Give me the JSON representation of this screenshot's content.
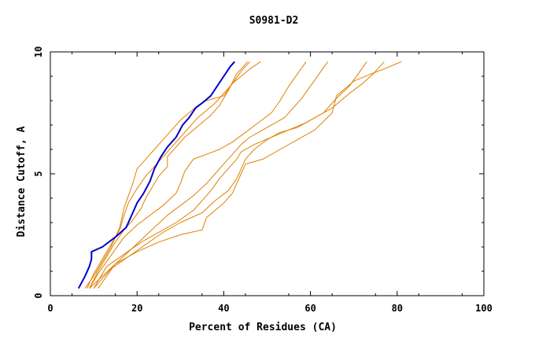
{
  "chart_data": {
    "type": "line",
    "title": "S0981-D2",
    "xlabel": "Percent of Residues (CA)",
    "ylabel": "Distance Cutoff, A",
    "xlim": [
      0,
      100
    ],
    "ylim": [
      0,
      10
    ],
    "x_ticks": [
      0,
      20,
      40,
      60,
      80,
      100
    ],
    "y_ticks": [
      0,
      5,
      10
    ],
    "grid": false,
    "legend": "none",
    "colors": {
      "highlight": "#0000cc",
      "others": "#e08000",
      "axis": "#000000"
    },
    "series": [
      {
        "highlight": true,
        "x": [
          6.5,
          8,
          9,
          9.5,
          9.5,
          12,
          15,
          17.5,
          19,
          20,
          21.5,
          23,
          24,
          25.5,
          27,
          29,
          30.5,
          32,
          33.5,
          35,
          37,
          38.5,
          40,
          41.5,
          42.5
        ],
        "y": [
          0.3,
          0.8,
          1.2,
          1.5,
          1.8,
          2.0,
          2.4,
          2.8,
          3.4,
          3.8,
          4.2,
          4.7,
          5.2,
          5.7,
          6.1,
          6.5,
          7.0,
          7.3,
          7.7,
          7.9,
          8.2,
          8.6,
          9.0,
          9.4,
          9.6
        ]
      },
      {
        "highlight": false,
        "x": [
          8,
          10,
          12,
          14,
          16,
          17,
          18,
          19,
          20,
          22,
          24,
          26,
          28,
          30,
          32,
          34,
          36,
          38,
          40,
          42,
          44,
          46
        ],
        "y": [
          0.3,
          0.8,
          1.4,
          2.0,
          2.8,
          3.6,
          4.1,
          4.6,
          5.2,
          5.6,
          6.0,
          6.4,
          6.8,
          7.2,
          7.5,
          7.8,
          8.0,
          8.1,
          8.2,
          8.7,
          9.2,
          9.6
        ]
      },
      {
        "highlight": false,
        "x": [
          8.5,
          10,
          12,
          14,
          16,
          17,
          18,
          20,
          22,
          24,
          26,
          28,
          30,
          32,
          34,
          36,
          38,
          40,
          42,
          44,
          46,
          48.5
        ],
        "y": [
          0.3,
          0.9,
          1.5,
          2.1,
          2.7,
          3.3,
          3.8,
          4.4,
          4.9,
          5.3,
          5.7,
          6.1,
          6.5,
          6.9,
          7.3,
          7.6,
          7.9,
          8.3,
          8.7,
          9.0,
          9.3,
          9.6
        ]
      },
      {
        "highlight": false,
        "x": [
          9,
          11,
          13,
          15,
          17,
          19,
          21,
          22,
          23,
          24,
          25,
          27,
          27,
          29,
          31,
          33,
          35,
          37,
          39,
          41,
          43,
          45.5
        ],
        "y": [
          0.3,
          1.0,
          1.6,
          2.2,
          2.7,
          3.1,
          3.6,
          4.0,
          4.3,
          4.6,
          4.9,
          5.3,
          5.7,
          6.1,
          6.5,
          6.8,
          7.1,
          7.4,
          7.8,
          8.4,
          9.1,
          9.6
        ]
      },
      {
        "highlight": false,
        "x": [
          9,
          11,
          13,
          15,
          17,
          20,
          23,
          26,
          29,
          30,
          31,
          33,
          36,
          39,
          42,
          45,
          48,
          51,
          53,
          55,
          57,
          59
        ],
        "y": [
          0.3,
          0.9,
          1.4,
          1.9,
          2.4,
          2.9,
          3.3,
          3.7,
          4.2,
          4.6,
          5.1,
          5.6,
          5.8,
          6.0,
          6.3,
          6.7,
          7.1,
          7.5,
          8.0,
          8.6,
          9.1,
          9.6
        ]
      },
      {
        "highlight": false,
        "x": [
          9,
          12,
          15,
          18,
          21,
          24,
          27,
          30,
          33,
          36,
          38,
          40,
          42,
          44,
          46,
          50,
          54,
          56,
          58,
          60,
          62,
          64
        ],
        "y": [
          0.3,
          0.8,
          1.3,
          1.8,
          2.3,
          2.8,
          3.3,
          3.7,
          4.1,
          4.6,
          5.0,
          5.4,
          5.8,
          6.2,
          6.5,
          6.9,
          7.3,
          7.7,
          8.1,
          8.6,
          9.1,
          9.6
        ]
      },
      {
        "highlight": false,
        "x": [
          10,
          13,
          17,
          21,
          25,
          29,
          33,
          35,
          37,
          39,
          41,
          43,
          44,
          47,
          51,
          55,
          59,
          63,
          66,
          69,
          71,
          73
        ],
        "y": [
          0.3,
          1.2,
          1.7,
          2.2,
          2.6,
          3.0,
          3.5,
          3.9,
          4.3,
          4.8,
          5.2,
          5.6,
          5.9,
          6.2,
          6.5,
          6.8,
          7.1,
          7.5,
          8.1,
          8.6,
          9.1,
          9.6
        ]
      },
      {
        "highlight": false,
        "x": [
          10,
          14,
          18,
          22,
          26,
          30,
          35,
          38,
          41,
          43,
          44,
          45,
          47,
          50,
          53,
          57,
          61,
          65,
          69,
          72,
          74.5,
          77
        ],
        "y": [
          0.3,
          1.1,
          1.6,
          2.1,
          2.6,
          3.0,
          3.4,
          3.9,
          4.3,
          4.8,
          5.2,
          5.6,
          6.0,
          6.4,
          6.7,
          6.9,
          7.3,
          7.7,
          8.3,
          8.7,
          9.1,
          9.6
        ]
      },
      {
        "highlight": false,
        "x": [
          11,
          15,
          20,
          25,
          30,
          35,
          36,
          38,
          40,
          42,
          43,
          44,
          45,
          49,
          53,
          57,
          61,
          65,
          66,
          70,
          74,
          77,
          81
        ],
        "y": [
          0.3,
          1.3,
          1.8,
          2.2,
          2.5,
          2.7,
          3.2,
          3.5,
          3.8,
          4.2,
          4.6,
          5.0,
          5.4,
          5.6,
          6.0,
          6.4,
          6.8,
          7.5,
          8.2,
          8.8,
          9.1,
          9.3,
          9.6
        ]
      }
    ]
  }
}
